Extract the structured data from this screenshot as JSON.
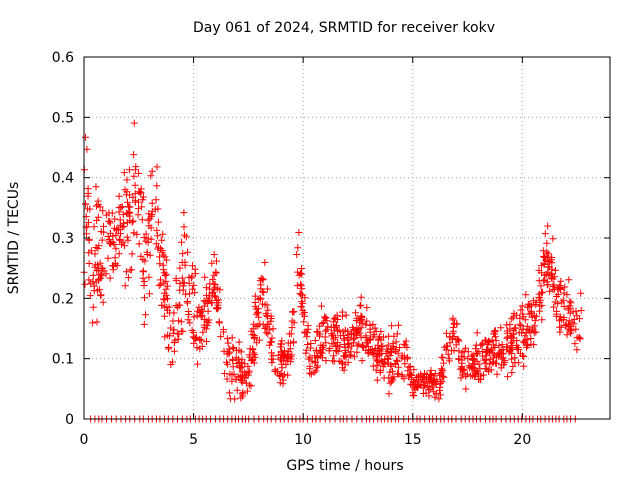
{
  "chart_data": {
    "type": "scatter",
    "title": "Day 061 of 2024, SRMTID for receiver kokv",
    "xlabel": "GPS time / hours",
    "ylabel": "SRMTID / TECUs",
    "xlim": [
      0,
      24
    ],
    "ylim": [
      0,
      0.6
    ],
    "x_ticks": [
      0,
      5,
      10,
      15,
      20
    ],
    "x_tick_labels": [
      "0",
      "5",
      "10",
      "15",
      "20"
    ],
    "y_ticks": [
      0,
      0.1,
      0.2,
      0.3,
      0.4,
      0.5,
      0.6
    ],
    "y_tick_labels": [
      "0",
      "0.1",
      "0.2",
      "0.3",
      "0.4",
      "0.5",
      "0.6"
    ],
    "grid": true,
    "marker": "+",
    "series": [
      {
        "name": "SRMTID",
        "color": "#ff0000",
        "envelope": [
          {
            "x": 0.0,
            "mean": 0.3,
            "spread": 0.12
          },
          {
            "x": 0.1,
            "mean": 0.4,
            "spread": 0.1
          },
          {
            "x": 0.3,
            "mean": 0.25,
            "spread": 0.08
          },
          {
            "x": 0.8,
            "mean": 0.27,
            "spread": 0.08
          },
          {
            "x": 1.5,
            "mean": 0.3,
            "spread": 0.05
          },
          {
            "x": 2.2,
            "mean": 0.33,
            "spread": 0.08
          },
          {
            "x": 2.3,
            "mean": 0.44,
            "spread": 0.08
          },
          {
            "x": 2.8,
            "mean": 0.25,
            "spread": 0.08
          },
          {
            "x": 3.2,
            "mean": 0.38,
            "spread": 0.07
          },
          {
            "x": 3.6,
            "mean": 0.22,
            "spread": 0.06
          },
          {
            "x": 4.0,
            "mean": 0.13,
            "spread": 0.05
          },
          {
            "x": 4.6,
            "mean": 0.26,
            "spread": 0.08
          },
          {
            "x": 5.2,
            "mean": 0.14,
            "spread": 0.05
          },
          {
            "x": 6.0,
            "mean": 0.22,
            "spread": 0.04
          },
          {
            "x": 6.6,
            "mean": 0.09,
            "spread": 0.04
          },
          {
            "x": 7.5,
            "mean": 0.07,
            "spread": 0.03
          },
          {
            "x": 8.2,
            "mean": 0.22,
            "spread": 0.05
          },
          {
            "x": 8.7,
            "mean": 0.09,
            "spread": 0.03
          },
          {
            "x": 9.4,
            "mean": 0.1,
            "spread": 0.03
          },
          {
            "x": 9.8,
            "mean": 0.25,
            "spread": 0.05
          },
          {
            "x": 10.3,
            "mean": 0.09,
            "spread": 0.03
          },
          {
            "x": 11.0,
            "mean": 0.14,
            "spread": 0.04
          },
          {
            "x": 12.0,
            "mean": 0.12,
            "spread": 0.03
          },
          {
            "x": 12.8,
            "mean": 0.16,
            "spread": 0.04
          },
          {
            "x": 13.5,
            "mean": 0.1,
            "spread": 0.03
          },
          {
            "x": 14.5,
            "mean": 0.1,
            "spread": 0.04
          },
          {
            "x": 15.0,
            "mean": 0.06,
            "spread": 0.02
          },
          {
            "x": 16.2,
            "mean": 0.06,
            "spread": 0.02
          },
          {
            "x": 16.9,
            "mean": 0.15,
            "spread": 0.03
          },
          {
            "x": 17.3,
            "mean": 0.08,
            "spread": 0.03
          },
          {
            "x": 18.0,
            "mean": 0.1,
            "spread": 0.03
          },
          {
            "x": 19.0,
            "mean": 0.12,
            "spread": 0.03
          },
          {
            "x": 20.0,
            "mean": 0.14,
            "spread": 0.04
          },
          {
            "x": 20.6,
            "mean": 0.17,
            "spread": 0.04
          },
          {
            "x": 21.1,
            "mean": 0.28,
            "spread": 0.05
          },
          {
            "x": 21.6,
            "mean": 0.2,
            "spread": 0.05
          },
          {
            "x": 22.2,
            "mean": 0.16,
            "spread": 0.04
          },
          {
            "x": 22.7,
            "mean": 0.16,
            "spread": 0.04
          }
        ],
        "zero_band": {
          "from": 0.3,
          "to": 22.5,
          "y": 0
        }
      }
    ]
  }
}
